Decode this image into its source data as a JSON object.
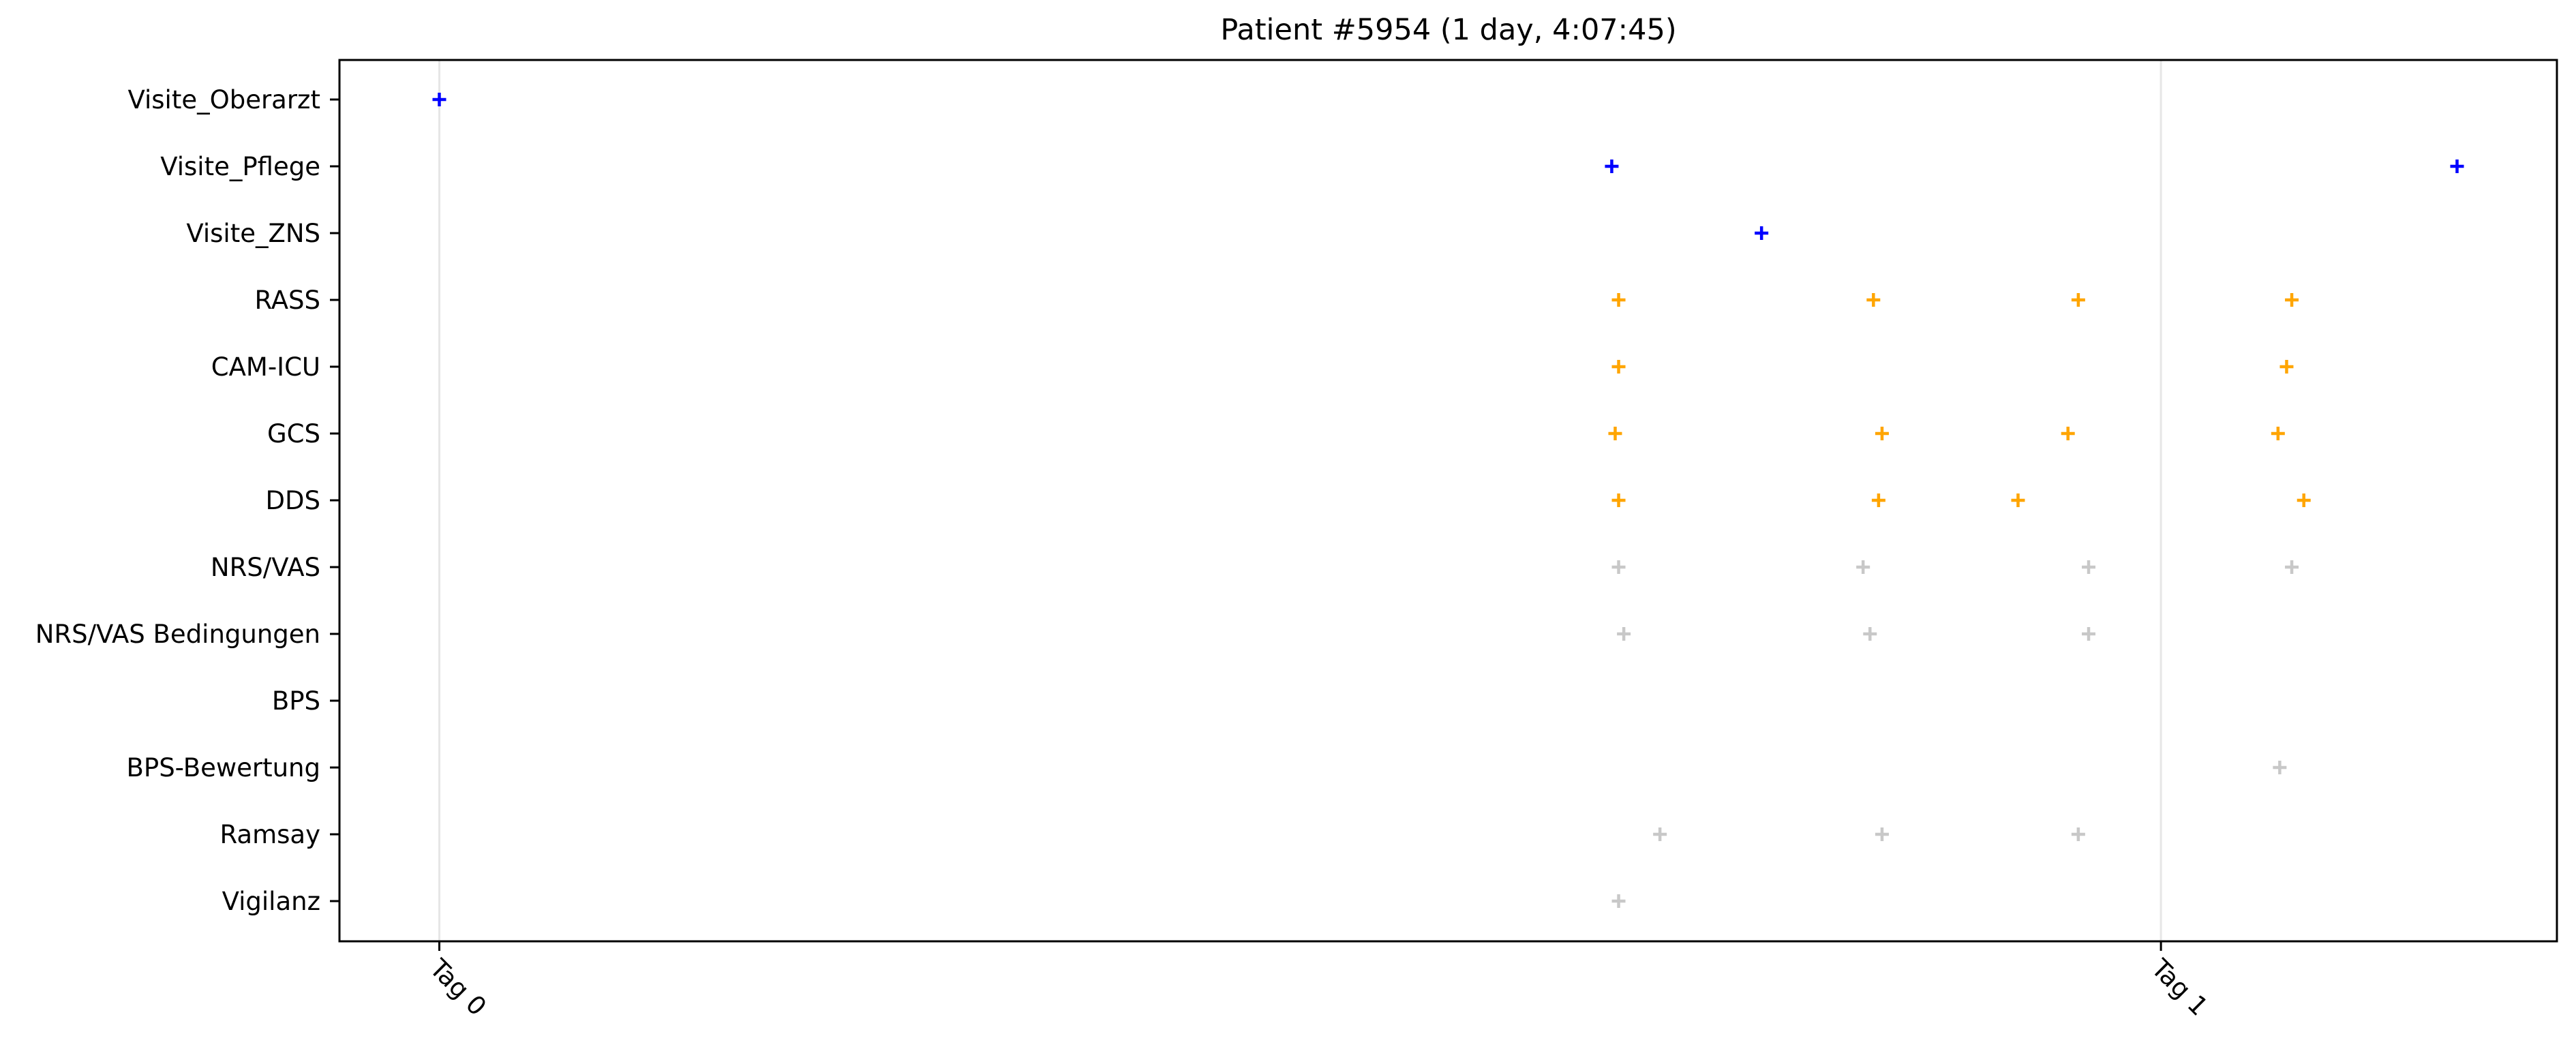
{
  "chart_data": {
    "type": "scatter",
    "title": "Patient #5954 (1 day, 4:07:45)",
    "xlabel": "",
    "ylabel": "",
    "x_unit": "days since Tag 0",
    "xlim": [
      -0.058,
      1.23
    ],
    "x_ticks": [
      {
        "value": 0,
        "label": "Tag 0"
      },
      {
        "value": 1,
        "label": "Tag 1"
      }
    ],
    "vertical_gridlines_at": [
      0,
      1
    ],
    "categories": [
      "Visite_Oberarzt",
      "Visite_Pflege",
      "Visite_ZNS",
      "RASS",
      "CAM-ICU",
      "GCS",
      "DDS",
      "NRS/VAS",
      "NRS/VAS Bedingungen",
      "BPS",
      "BPS-Bewertung",
      "Ramsay",
      "Vigilanz"
    ],
    "marker": "+",
    "colors": {
      "visit": "#0000ff",
      "assessment": "#ffa500",
      "other": "#c8c8c8"
    },
    "series": [
      {
        "name": "Visite_Oberarzt",
        "color": "#0000ff",
        "x": [
          0.0
        ]
      },
      {
        "name": "Visite_Pflege",
        "color": "#0000ff",
        "x": [
          0.681,
          1.172
        ]
      },
      {
        "name": "Visite_ZNS",
        "color": "#0000ff",
        "x": [
          0.768
        ]
      },
      {
        "name": "RASS",
        "color": "#ffa500",
        "x": [
          0.685,
          0.833,
          0.952,
          1.076
        ]
      },
      {
        "name": "CAM-ICU",
        "color": "#ffa500",
        "x": [
          0.685,
          1.073
        ]
      },
      {
        "name": "GCS",
        "color": "#ffa500",
        "x": [
          0.683,
          0.838,
          0.946,
          1.068
        ]
      },
      {
        "name": "DDS",
        "color": "#ffa500",
        "x": [
          0.685,
          0.836,
          0.917,
          1.083
        ]
      },
      {
        "name": "NRS/VAS",
        "color": "#c8c8c8",
        "x": [
          0.685,
          0.827,
          0.958,
          1.076
        ]
      },
      {
        "name": "NRS/VAS Bedingungen",
        "color": "#c8c8c8",
        "x": [
          0.688,
          0.831,
          0.958
        ]
      },
      {
        "name": "BPS",
        "color": "#c8c8c8",
        "x": []
      },
      {
        "name": "BPS-Bewertung",
        "color": "#c8c8c8",
        "x": [
          1.069
        ]
      },
      {
        "name": "Ramsay",
        "color": "#c8c8c8",
        "x": [
          0.709,
          0.838,
          0.952
        ]
      },
      {
        "name": "Vigilanz",
        "color": "#c8c8c8",
        "x": [
          0.685
        ]
      }
    ]
  }
}
